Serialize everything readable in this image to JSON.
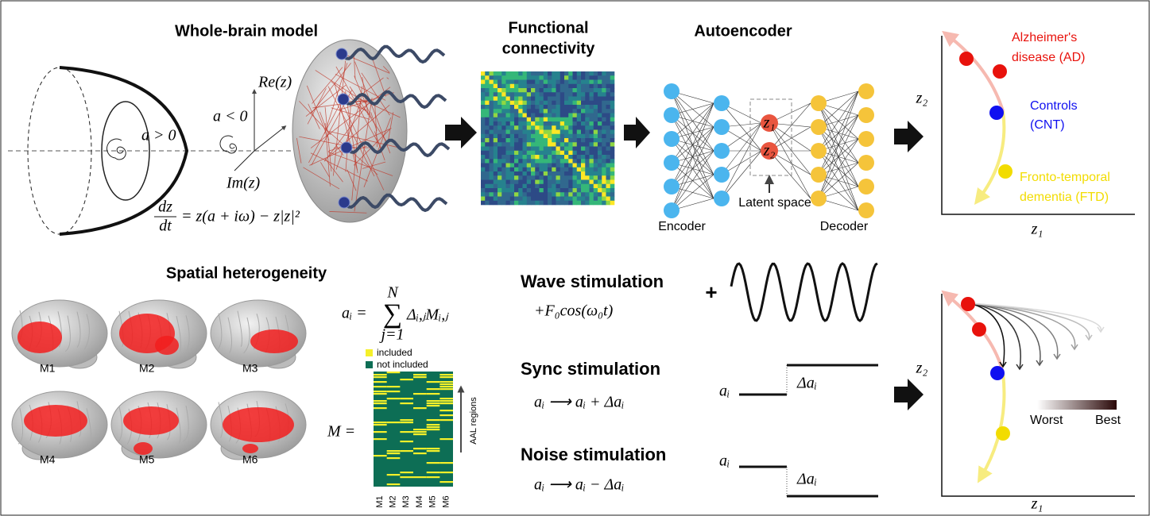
{
  "whole_brain": {
    "title": "Whole-brain model",
    "a_pos": "a > 0",
    "a_neg": "a < 0",
    "re": "Re(z)",
    "im": "Im(z)",
    "equation": {
      "numerator": "dz",
      "denominator": "dt",
      "rhs": "= z(a + iω) − z|z|²"
    }
  },
  "functional_connectivity": {
    "title": [
      "Functional",
      "connectivity"
    ]
  },
  "autoencoder": {
    "title": "Autoencoder",
    "latent_nodes": [
      "z₁",
      "z₂"
    ],
    "latent_label": "Latent space",
    "encoder": "Encoder",
    "decoder": "Decoder"
  },
  "latent_plot": {
    "y_label": "z₂",
    "x_label": "z₁",
    "groups": [
      {
        "label": [
          "Alzheimer's",
          "disease (AD)"
        ]
      },
      {
        "label": [
          "Controls",
          "(CNT)"
        ]
      },
      {
        "label": [
          "Fronto-temporal",
          "dementia (FTD)"
        ]
      }
    ]
  },
  "spatial": {
    "title": "Spatial heterogeneity",
    "maps": [
      "M1",
      "M2",
      "M3",
      "M4",
      "M5",
      "M6"
    ],
    "equation": {
      "lhs": "aᵢ =",
      "sum": "∑",
      "upper": "N",
      "lower": "j=1",
      "term": "Δᵢ,ⱼMᵢ,ⱼ"
    },
    "legend": [
      "included",
      "not included"
    ],
    "matrix_label": "M =",
    "axis_label": "AAL regions",
    "columns": [
      "M1",
      "M2",
      "M3",
      "M4",
      "M5",
      "M6"
    ]
  },
  "stimulation": [
    {
      "title": "Wave stimulation",
      "formula": "+F₀cos(ω₀t)",
      "plus": "+"
    },
    {
      "title": "Sync stimulation",
      "formula": "aᵢ ⟶ aᵢ + Δaᵢ",
      "level": "aᵢ",
      "delta": "Δaᵢ"
    },
    {
      "title": "Noise stimulation",
      "formula": "aᵢ ⟶ aᵢ − Δaᵢ",
      "level": "aᵢ",
      "delta": "Δaᵢ"
    }
  ],
  "stimulation_plot": {
    "y_label": "z₂",
    "x_label": "z₁",
    "scale": [
      "Worst",
      "Best"
    ]
  }
}
